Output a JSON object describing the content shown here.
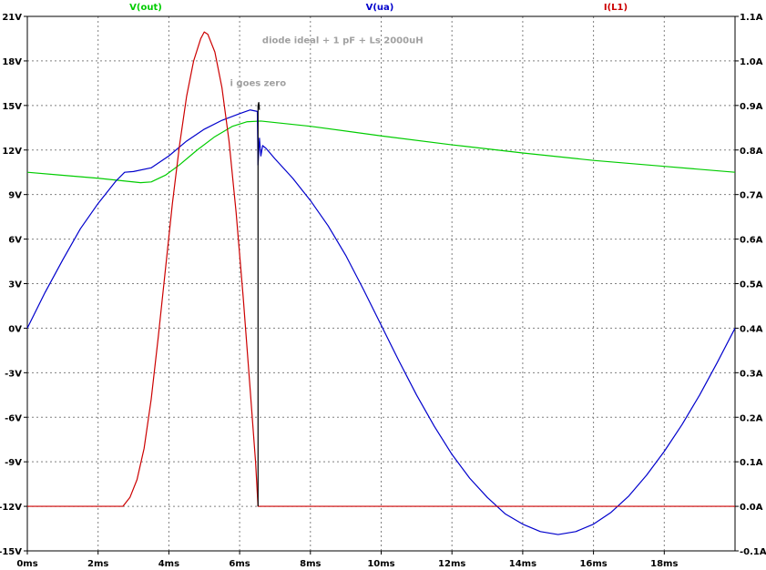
{
  "chart_data": {
    "type": "line",
    "title": "",
    "xlabel": "",
    "ylabel": "",
    "grid": true,
    "x_axis": {
      "unit": "ms",
      "range": [
        0,
        20
      ],
      "ticks": [
        0,
        2,
        4,
        6,
        8,
        10,
        12,
        14,
        16,
        18
      ],
      "tick_labels": [
        "0ms",
        "2ms",
        "4ms",
        "6ms",
        "8ms",
        "10ms",
        "12ms",
        "14ms",
        "16ms",
        "18ms"
      ]
    },
    "y_left": {
      "unit": "V",
      "range": [
        -15,
        21
      ],
      "ticks": [
        -15,
        -12,
        -9,
        -6,
        -3,
        0,
        3,
        6,
        9,
        12,
        15,
        18,
        21
      ],
      "tick_labels": [
        "-15V",
        "-12V",
        "-9V",
        "-6V",
        "-3V",
        "0V",
        "3V",
        "6V",
        "9V",
        "12V",
        "15V",
        "18V",
        "21V"
      ]
    },
    "y_right": {
      "unit": "A",
      "range": [
        -0.1,
        1.1
      ],
      "ticks": [
        -0.1,
        0.0,
        0.1,
        0.2,
        0.3,
        0.4,
        0.5,
        0.6,
        0.7,
        0.8,
        0.9,
        1.0,
        1.1
      ],
      "tick_labels": [
        "-0.1A",
        "0.0A",
        "0.1A",
        "0.2A",
        "0.3A",
        "0.4A",
        "0.5A",
        "0.6A",
        "0.7A",
        "0.8A",
        "0.9A",
        "1.0A",
        "1.1A"
      ]
    },
    "series": [
      {
        "name": "V(out)",
        "color": "#00cc00",
        "axis": "left",
        "points": [
          [
            0,
            10.5
          ],
          [
            1,
            10.3
          ],
          [
            2,
            10.1
          ],
          [
            2.8,
            9.9
          ],
          [
            3.2,
            9.8
          ],
          [
            3.5,
            9.85
          ],
          [
            3.9,
            10.3
          ],
          [
            4.3,
            11.0
          ],
          [
            4.8,
            12.0
          ],
          [
            5.3,
            12.9
          ],
          [
            5.8,
            13.6
          ],
          [
            6.2,
            13.9
          ],
          [
            6.6,
            13.95
          ],
          [
            8,
            13.6
          ],
          [
            10,
            12.95
          ],
          [
            12,
            12.35
          ],
          [
            14,
            11.8
          ],
          [
            16,
            11.3
          ],
          [
            18,
            10.9
          ],
          [
            20,
            10.5
          ]
        ]
      },
      {
        "name": "V(ua)",
        "color": "#0000cc",
        "axis": "left",
        "points": [
          [
            0,
            0.0
          ],
          [
            0.5,
            2.4
          ],
          [
            1.0,
            4.6
          ],
          [
            1.5,
            6.7
          ],
          [
            2.0,
            8.4
          ],
          [
            2.5,
            9.9
          ],
          [
            2.75,
            10.5
          ],
          [
            3.0,
            10.55
          ],
          [
            3.5,
            10.8
          ],
          [
            4.0,
            11.6
          ],
          [
            4.5,
            12.6
          ],
          [
            5.0,
            13.4
          ],
          [
            5.5,
            14.0
          ],
          [
            6.0,
            14.45
          ],
          [
            6.3,
            14.7
          ],
          [
            6.5,
            14.6
          ],
          [
            6.52,
            11.0
          ],
          [
            6.56,
            12.8
          ],
          [
            6.6,
            11.6
          ],
          [
            6.65,
            12.3
          ],
          [
            6.75,
            12.1
          ],
          [
            7.0,
            11.4
          ],
          [
            7.5,
            10.1
          ],
          [
            8.0,
            8.6
          ],
          [
            8.5,
            6.9
          ],
          [
            9.0,
            4.9
          ],
          [
            9.5,
            2.6
          ],
          [
            10.0,
            0.2
          ],
          [
            10.5,
            -2.2
          ],
          [
            11.0,
            -4.5
          ],
          [
            11.5,
            -6.6
          ],
          [
            12.0,
            -8.5
          ],
          [
            12.5,
            -10.1
          ],
          [
            13.0,
            -11.4
          ],
          [
            13.5,
            -12.5
          ],
          [
            14.0,
            -13.2
          ],
          [
            14.5,
            -13.7
          ],
          [
            15.0,
            -13.9
          ],
          [
            15.5,
            -13.7
          ],
          [
            16.0,
            -13.2
          ],
          [
            16.5,
            -12.4
          ],
          [
            17.0,
            -11.3
          ],
          [
            17.5,
            -9.9
          ],
          [
            18.0,
            -8.3
          ],
          [
            18.5,
            -6.5
          ],
          [
            19.0,
            -4.5
          ],
          [
            19.5,
            -2.3
          ],
          [
            20.0,
            0.0
          ]
        ]
      },
      {
        "name": "I(L1)",
        "color": "#cc0000",
        "axis": "right",
        "points": [
          [
            0,
            0.0
          ],
          [
            2.7,
            0.0
          ],
          [
            2.9,
            0.02
          ],
          [
            3.1,
            0.06
          ],
          [
            3.3,
            0.13
          ],
          [
            3.5,
            0.24
          ],
          [
            3.7,
            0.38
          ],
          [
            3.9,
            0.53
          ],
          [
            4.1,
            0.68
          ],
          [
            4.3,
            0.81
          ],
          [
            4.5,
            0.92
          ],
          [
            4.7,
            1.0
          ],
          [
            4.9,
            1.05
          ],
          [
            5.0,
            1.065
          ],
          [
            5.1,
            1.06
          ],
          [
            5.3,
            1.02
          ],
          [
            5.5,
            0.94
          ],
          [
            5.7,
            0.82
          ],
          [
            5.9,
            0.66
          ],
          [
            6.1,
            0.47
          ],
          [
            6.3,
            0.26
          ],
          [
            6.45,
            0.1
          ],
          [
            6.52,
            0.0
          ],
          [
            20,
            0.0
          ]
        ]
      },
      {
        "name": "",
        "color": "#000000",
        "axis": "left",
        "points": [
          [
            6.52,
            -12.0
          ],
          [
            6.52,
            15.0
          ],
          [
            6.54,
            15.2
          ],
          [
            6.56,
            14.7
          ]
        ]
      }
    ],
    "legend": {
      "placement": "top",
      "entries": [
        {
          "label": "V(out)",
          "color": "#00cc00"
        },
        {
          "label": "V(ua)",
          "color": "#0000cc"
        },
        {
          "label": "I(L1)",
          "color": "#cc0000"
        }
      ]
    },
    "annotations": [
      {
        "text": "diode ideal + 1 pF + Ls 2000uH",
        "x": 10.5,
        "y_v": 19.2
      },
      {
        "text": "i goes zero",
        "x": 6.5,
        "y_v": 16.3
      }
    ]
  }
}
